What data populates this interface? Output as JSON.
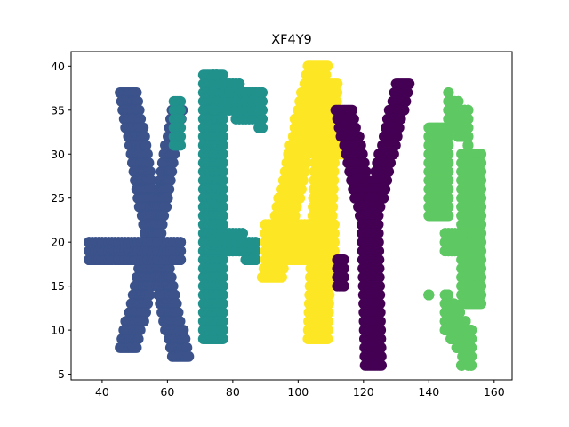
{
  "chart_data": {
    "type": "scatter",
    "title": "XF4Y9",
    "xlabel": "",
    "ylabel": "",
    "xlim": [
      30.5,
      165.5
    ],
    "ylim": [
      4.35,
      41.65
    ],
    "xticks": [
      40,
      60,
      80,
      100,
      120,
      140,
      160
    ],
    "yticks": [
      5,
      10,
      15,
      20,
      25,
      30,
      35,
      40
    ],
    "grid": false,
    "legend": "none",
    "series": [
      {
        "color": "#3b528b",
        "shape": "X",
        "points_note": "letter X glyph",
        "segments": [
          {
            "x1": 48,
            "y1": 37,
            "x2": 56,
            "y2": 20,
            "dx": 2.5
          },
          {
            "x1": 63,
            "y1": 35,
            "x2": 56,
            "y2": 20,
            "dx": 1.6
          },
          {
            "x1": 56,
            "y1": 20,
            "x2": 48,
            "y2": 8,
            "dx": 2.5
          },
          {
            "x1": 56,
            "y1": 20,
            "x2": 64,
            "y2": 7,
            "dx": 2.5
          },
          {
            "x1": 36,
            "y1": 19,
            "x2": 64,
            "y2": 19,
            "dy": 2
          }
        ]
      },
      {
        "color": "#21918c",
        "shape": "F",
        "points_note": "letter F glyph",
        "segments": [
          {
            "x1": 74,
            "y1": 39,
            "x2": 74,
            "y2": 9,
            "dx": 3
          },
          {
            "x1": 74,
            "y1": 37,
            "x2": 89,
            "y2": 35,
            "dy": 2.5
          },
          {
            "x1": 74,
            "y1": 21,
            "x2": 87,
            "y2": 19,
            "dy": 2
          },
          {
            "x1": 63,
            "y1": 36,
            "x2": 63,
            "y2": 31,
            "dx": 1
          }
        ]
      },
      {
        "color": "#fde725",
        "shape": "4",
        "points_note": "digit 4 glyph",
        "segments": [
          {
            "x1": 106,
            "y1": 40,
            "x2": 92,
            "y2": 16,
            "dx": 3
          },
          {
            "x1": 109,
            "y1": 38,
            "x2": 106,
            "y2": 9,
            "dx": 3
          },
          {
            "x1": 90,
            "y1": 20,
            "x2": 111,
            "y2": 20,
            "dy": 3
          },
          {
            "x1": 102,
            "y1": 34,
            "x2": 111,
            "y2": 30,
            "dx": 3
          }
        ]
      },
      {
        "color": "#440154",
        "shape": "Y",
        "points_note": "letter Y glyph",
        "segments": [
          {
            "x1": 114,
            "y1": 35,
            "x2": 122,
            "y2": 22,
            "dx": 2.5
          },
          {
            "x1": 132,
            "y1": 38,
            "x2": 122,
            "y2": 22,
            "dx": 2
          },
          {
            "x1": 122,
            "y1": 22,
            "x2": 123,
            "y2": 6,
            "dx": 2.5
          },
          {
            "x1": 113,
            "y1": 18,
            "x2": 113,
            "y2": 15,
            "dx": 1
          }
        ]
      },
      {
        "color": "#5ec962",
        "shape": "9",
        "points_note": "digit 9 glyph",
        "segments": [
          {
            "x1": 153,
            "y1": 30,
            "x2": 153,
            "y2": 13,
            "dx": 3
          },
          {
            "x1": 143,
            "y1": 33,
            "x2": 143,
            "y2": 23,
            "dx": 3
          },
          {
            "x1": 146,
            "y1": 35,
            "x2": 152,
            "y2": 33,
            "dy": 2.5
          },
          {
            "x1": 145,
            "y1": 20,
            "x2": 155,
            "y2": 19,
            "dy": 2
          },
          {
            "x1": 145,
            "y1": 12,
            "x2": 153,
            "y2": 8,
            "dy": 3
          },
          {
            "x1": 150,
            "y1": 6,
            "x2": 150,
            "y2": 6,
            "dx": 0
          },
          {
            "x1": 140,
            "y1": 14,
            "x2": 140,
            "y2": 14,
            "dx": 0
          }
        ]
      }
    ]
  }
}
